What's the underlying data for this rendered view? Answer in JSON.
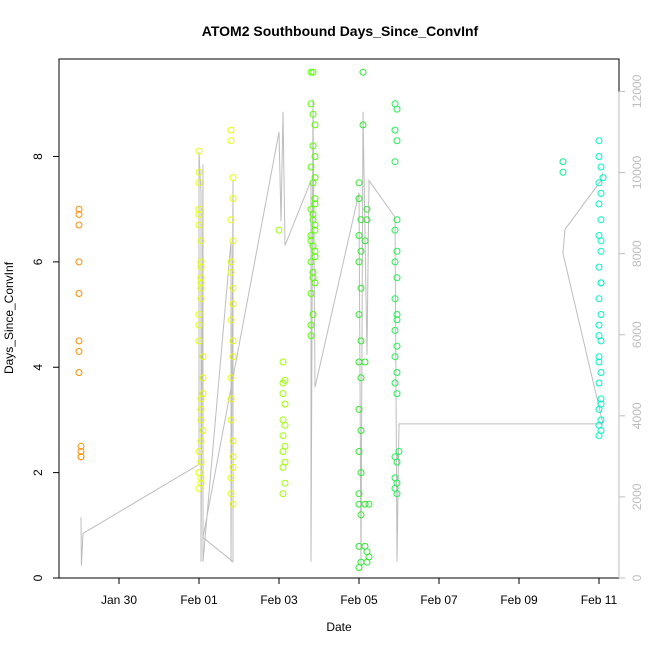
{
  "chart_data": {
    "type": "scatter",
    "title": "ATOM2 Southbound Days_Since_ConvInf",
    "xlabel": "Date",
    "ylabel": "Days_Since_ConvInf",
    "x_ticks": [
      "Jan 30",
      "Feb 01",
      "Feb 03",
      "Feb 05",
      "Feb 07",
      "Feb 09",
      "Feb 11"
    ],
    "x_tick_days": [
      29.5,
      31.5,
      33.5,
      35.5,
      37.5,
      39.5,
      41.5
    ],
    "xlim_days": [
      28.0,
      42.0
    ],
    "ylim": [
      0,
      9.85
    ],
    "y_ticks": [
      0,
      2,
      4,
      6,
      8
    ],
    "y2_ticks": [
      0,
      2000,
      4000,
      6000,
      8000,
      10000,
      12000
    ],
    "y2lim": [
      0,
      12800
    ],
    "grid": false,
    "colors": {
      "axis": "#000000",
      "right_axis": "#bdbdbd",
      "line": "#bdbdbd"
    },
    "series": [
      {
        "color": "#ff8c00",
        "x_days": [
          28.5,
          28.5,
          28.5,
          28.5,
          28.5,
          28.5,
          28.5,
          28.5,
          28.55,
          28.55,
          28.55,
          28.55
        ],
        "y": [
          7.0,
          6.9,
          6.7,
          6.0,
          5.4,
          4.5,
          4.3,
          3.9,
          2.5,
          2.4,
          2.3,
          2.3
        ]
      },
      {
        "color": "#e6ff00",
        "x_days": [
          31.5,
          31.5,
          31.5,
          31.5,
          31.5,
          31.5,
          31.55,
          31.55,
          31.55,
          31.55,
          31.55,
          31.55,
          31.5,
          31.5,
          31.5,
          31.6,
          31.6,
          31.6,
          31.55,
          31.55,
          31.6,
          31.55,
          31.5,
          31.55,
          31.5,
          31.55,
          31.55,
          31.5,
          31.55,
          31.55,
          32.3,
          32.3,
          32.35,
          32.35,
          32.3,
          32.35,
          32.3,
          32.3,
          32.35,
          32.35,
          32.3,
          32.35,
          32.35,
          32.3,
          32.3,
          32.3,
          32.35,
          32.35,
          32.35,
          32.3,
          32.3,
          32.35
        ],
        "y": [
          8.1,
          7.7,
          7.5,
          7.0,
          6.9,
          6.7,
          6.4,
          6.0,
          5.9,
          5.7,
          5.5,
          5.3,
          5.0,
          4.8,
          4.5,
          4.2,
          3.8,
          3.5,
          3.2,
          3.0,
          2.8,
          2.6,
          2.4,
          2.2,
          2.0,
          1.9,
          1.8,
          1.7,
          3.4,
          5.6,
          8.5,
          8.3,
          7.6,
          7.2,
          6.8,
          6.4,
          6.0,
          5.8,
          5.5,
          5.2,
          4.9,
          4.5,
          4.2,
          3.8,
          3.4,
          3.0,
          2.6,
          2.3,
          2.1,
          1.9,
          1.6,
          1.4
        ]
      },
      {
        "color": "#9cff00",
        "x_days": [
          33.5,
          33.6,
          33.6,
          33.65,
          33.6,
          33.65,
          33.6,
          33.65,
          33.6,
          33.65,
          33.6,
          33.65,
          33.6,
          33.65,
          33.6
        ],
        "y": [
          6.6,
          4.1,
          3.7,
          3.75,
          3.5,
          3.3,
          3.0,
          2.9,
          2.7,
          2.5,
          2.4,
          2.2,
          2.1,
          1.8,
          1.6
        ]
      },
      {
        "color": "#55ff00",
        "x_days": [
          34.3,
          34.35,
          34.3,
          34.35,
          34.4,
          34.35,
          34.4,
          34.3,
          34.35,
          34.4,
          34.3,
          34.35,
          34.4,
          34.3,
          34.35,
          34.4,
          34.3,
          34.35,
          34.4,
          34.3,
          34.35,
          34.3,
          34.35,
          34.4,
          34.3,
          34.35,
          34.3,
          34.4,
          34.4,
          34.4
        ],
        "y": [
          9.6,
          9.6,
          9.0,
          8.8,
          8.6,
          8.2,
          8.0,
          7.8,
          7.5,
          7.2,
          7.0,
          6.8,
          6.6,
          6.5,
          6.3,
          6.2,
          6.0,
          5.8,
          5.6,
          5.4,
          5.0,
          4.6,
          6.9,
          6.7,
          6.4,
          5.7,
          4.8,
          7.6,
          7.1,
          6.1
        ]
      },
      {
        "color": "#2ee82e",
        "x_days": [
          35.5,
          35.5,
          35.55,
          35.5,
          35.55,
          35.5,
          35.55,
          35.5,
          35.55,
          35.5,
          35.55,
          35.5,
          35.55,
          35.5,
          35.55,
          35.5,
          35.5,
          35.55,
          35.5,
          35.55,
          35.5,
          35.6,
          35.6,
          35.7,
          35.7,
          35.65,
          35.65,
          35.7,
          35.7,
          35.75,
          35.65,
          35.65,
          35.75
        ],
        "y": [
          7.5,
          7.2,
          6.8,
          6.5,
          6.2,
          6.0,
          5.5,
          5.0,
          4.5,
          4.1,
          3.8,
          3.2,
          2.8,
          2.4,
          2.0,
          1.6,
          1.4,
          1.2,
          0.6,
          0.3,
          0.2,
          9.6,
          8.6,
          7.0,
          6.8,
          6.4,
          0.6,
          0.5,
          0.3,
          0.4,
          1.4,
          4.1,
          1.4
        ]
      },
      {
        "color": "#22ee55",
        "x_days": [
          36.4,
          36.45,
          36.4,
          36.45,
          36.4,
          36.45,
          36.4,
          36.45,
          36.4,
          36.45,
          36.4,
          36.45,
          36.4,
          36.45,
          36.4,
          36.45,
          36.4,
          36.45,
          36.4,
          36.45,
          36.4,
          36.45,
          36.4,
          36.45,
          36.5,
          36.45
        ],
        "y": [
          9.0,
          8.9,
          8.5,
          8.3,
          7.9,
          6.8,
          6.6,
          6.2,
          6.0,
          5.7,
          5.3,
          5.0,
          4.7,
          4.4,
          4.2,
          3.9,
          3.7,
          3.5,
          2.3,
          2.2,
          1.9,
          1.8,
          1.7,
          1.6,
          2.4,
          4.9
        ]
      },
      {
        "color": "#00ee88",
        "x_days": [
          40.6,
          40.6
        ],
        "y": [
          7.9,
          7.7
        ]
      },
      {
        "color": "#00f5c8",
        "x_days": [
          41.5,
          41.5,
          41.55,
          41.5,
          41.55,
          41.5,
          41.55,
          41.5,
          41.55,
          41.5,
          41.55,
          41.5,
          41.55,
          41.5,
          41.55,
          41.5,
          41.55,
          41.5,
          41.55,
          41.5,
          41.55,
          41.5,
          41.55,
          41.5,
          41.55,
          41.5,
          41.55,
          41.5,
          41.55,
          41.6
        ],
        "y": [
          8.3,
          8.0,
          7.8,
          7.5,
          7.3,
          7.1,
          6.8,
          6.5,
          6.2,
          5.9,
          5.6,
          5.3,
          5.0,
          4.8,
          4.5,
          4.2,
          3.9,
          3.7,
          3.4,
          3.2,
          3.0,
          2.9,
          2.8,
          2.7,
          5.6,
          4.6,
          3.3,
          4.1,
          6.4,
          7.6
        ]
      }
    ],
    "secondary_line": {
      "color": "#bdbdbd",
      "x_days": [
        28.55,
        28.56,
        28.6,
        31.5,
        31.5,
        31.55,
        31.55,
        31.6,
        31.6,
        32.3,
        32.3,
        32.35,
        32.35,
        31.6,
        33.5,
        33.55,
        33.6,
        33.65,
        34.3,
        34.3,
        34.35,
        34.4,
        35.5,
        35.55,
        35.6,
        35.7,
        35.75,
        36.4,
        36.45,
        36.5,
        41.6,
        40.6,
        40.65,
        41.55,
        41.6
      ],
      "y2": [
        1500,
        300,
        1100,
        2800,
        10500,
        9500,
        400,
        10200,
        400,
        8300,
        400,
        9800,
        400,
        1000,
        11000,
        8800,
        11500,
        8200,
        9800,
        400,
        11800,
        4700,
        9500,
        300,
        11500,
        5500,
        9800,
        8900,
        400,
        3800,
        3800,
        8000,
        8600,
        9800,
        10000
      ]
    }
  }
}
